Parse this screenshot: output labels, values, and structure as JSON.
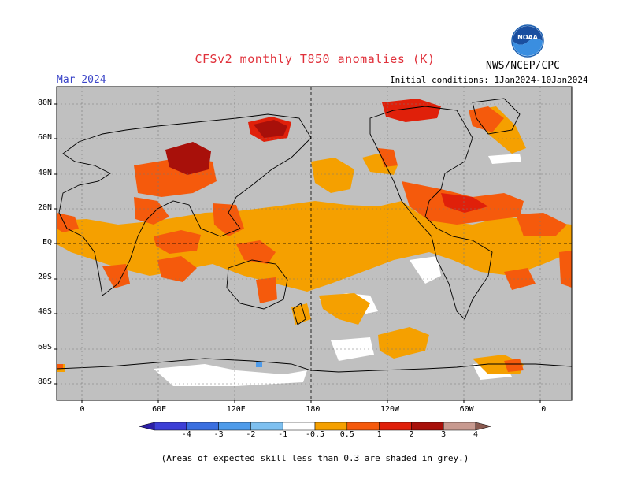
{
  "title": "CFSv2 monthly T850 anomalies (K)",
  "valid_month": "Mar 2024",
  "initial_conditions": "Initial conditions: 1Jan2024-10Jan2024",
  "agency": "NWS/NCEP/CPC",
  "logo_text": "NOAA",
  "lat_labels": [
    "80N",
    "60N",
    "40N",
    "20N",
    "EQ",
    "20S",
    "40S",
    "60S",
    "80S"
  ],
  "lat_values": [
    80,
    60,
    40,
    20,
    0,
    -20,
    -40,
    -60,
    -80
  ],
  "lon_labels": [
    "0",
    "60E",
    "120E",
    "180",
    "120W",
    "60W",
    "0"
  ],
  "lon_values": [
    0,
    60,
    120,
    180,
    240,
    300,
    360
  ],
  "colorbar": {
    "labels": [
      "-4",
      "-3",
      "-2",
      "-1",
      "-0.5",
      "0.5",
      "1",
      "2",
      "3",
      "4"
    ],
    "bins": [
      {
        "color": "#2c1fa8"
      },
      {
        "color": "#3d3fd6"
      },
      {
        "color": "#3a6fe0"
      },
      {
        "color": "#4e9bea"
      },
      {
        "color": "#7ec0f0"
      },
      {
        "color": "#ffffff"
      },
      {
        "color": "#f5a000"
      },
      {
        "color": "#f55a0c"
      },
      {
        "color": "#e0200a"
      },
      {
        "color": "#a8100a"
      },
      {
        "color": "#c89a90"
      },
      {
        "color": "#8a5a50"
      }
    ]
  },
  "colors": {
    "grey_skill_mask": "#c0c0c0",
    "anom_0_5_1": "#f5a000",
    "anom_1_2": "#f55a0c",
    "anom_2_3": "#e0200a",
    "anom_3_4": "#a8100a",
    "neutral": "#ffffff"
  },
  "footnote": "(Areas of expected skill less than 0.3 are shaded in grey.)"
}
